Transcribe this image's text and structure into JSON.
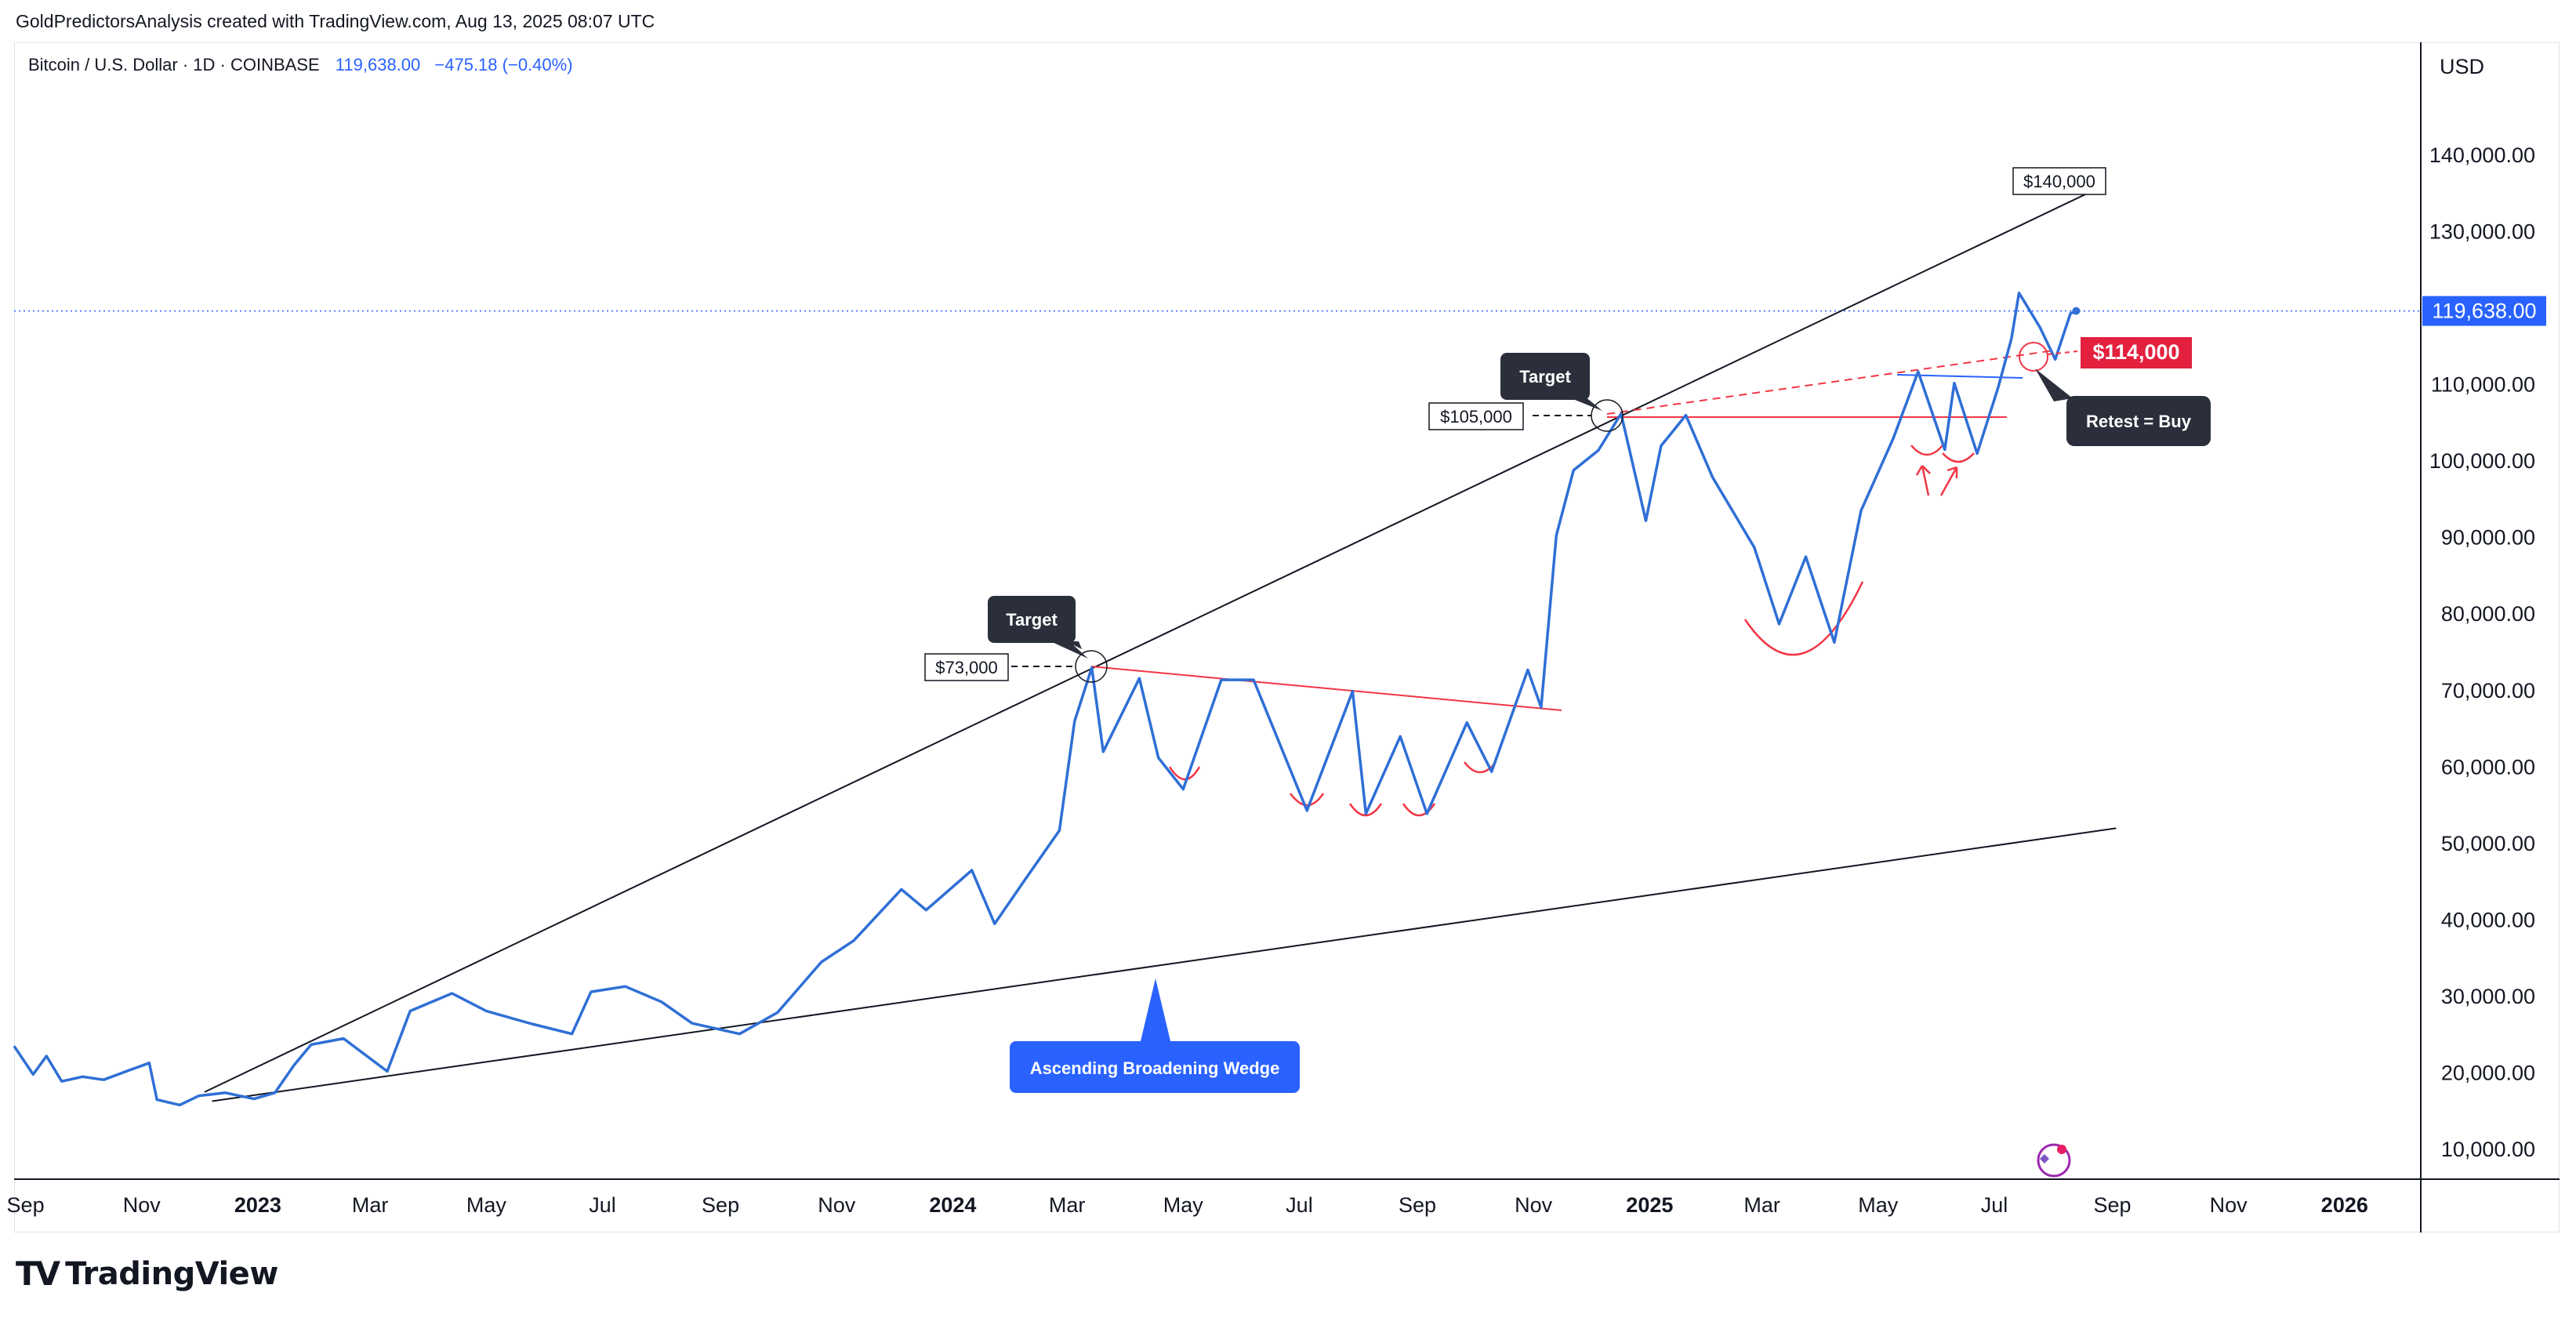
{
  "header": {
    "credit": "GoldPredictorsAnalysis created with TradingView.com, Aug 13, 2025 08:07 UTC",
    "symbol": "Bitcoin / U.S. Dollar · 1D · COINBASE",
    "price": "119,638.00",
    "change": "−475.18 (−0.40%)"
  },
  "brand": {
    "mark": "TV",
    "word": "TradingView"
  },
  "colors": {
    "price_line": "#2f6fd6",
    "accent": "#2962ff",
    "red": "#f23645",
    "dark_label": "#2b2f3b",
    "last_price_bg": "#2962ff",
    "retest_bg": "#e3203e"
  },
  "chart_data": {
    "type": "line",
    "ylabel": "USD",
    "ylim": [
      5000,
      150000
    ],
    "xlim": [
      "2022-08-26",
      "2026-02-10"
    ],
    "y_ticks": [
      10000,
      20000,
      30000,
      40000,
      50000,
      60000,
      70000,
      80000,
      90000,
      100000,
      110000,
      120000,
      130000,
      140000
    ],
    "y_tick_labels": [
      "10,000.00",
      "20,000.00",
      "30,000.00",
      "40,000.00",
      "50,000.00",
      "60,000.00",
      "70,000.00",
      "80,000.00",
      "90,000.00",
      "100,000.00",
      "110,000.00",
      "120,000.00",
      "130,000.00",
      "140,000.00"
    ],
    "x_ticks": [
      {
        "date": "2022-09-01",
        "label": "Sep",
        "bold": false
      },
      {
        "date": "2022-11-01",
        "label": "Nov",
        "bold": false
      },
      {
        "date": "2023-01-01",
        "label": "2023",
        "bold": true
      },
      {
        "date": "2023-03-01",
        "label": "Mar",
        "bold": false
      },
      {
        "date": "2023-05-01",
        "label": "May",
        "bold": false
      },
      {
        "date": "2023-07-01",
        "label": "Jul",
        "bold": false
      },
      {
        "date": "2023-09-01",
        "label": "Sep",
        "bold": false
      },
      {
        "date": "2023-11-01",
        "label": "Nov",
        "bold": false
      },
      {
        "date": "2024-01-01",
        "label": "2024",
        "bold": true
      },
      {
        "date": "2024-03-01",
        "label": "Mar",
        "bold": false
      },
      {
        "date": "2024-05-01",
        "label": "May",
        "bold": false
      },
      {
        "date": "2024-07-01",
        "label": "Jul",
        "bold": false
      },
      {
        "date": "2024-09-01",
        "label": "Sep",
        "bold": false
      },
      {
        "date": "2024-11-01",
        "label": "Nov",
        "bold": false
      },
      {
        "date": "2025-01-01",
        "label": "2025",
        "bold": true
      },
      {
        "date": "2025-03-01",
        "label": "Mar",
        "bold": false
      },
      {
        "date": "2025-05-01",
        "label": "May",
        "bold": false
      },
      {
        "date": "2025-07-01",
        "label": "Jul",
        "bold": false
      },
      {
        "date": "2025-09-01",
        "label": "Sep",
        "bold": false
      },
      {
        "date": "2025-11-01",
        "label": "Nov",
        "bold": false
      },
      {
        "date": "2026-01-01",
        "label": "2026",
        "bold": true
      }
    ],
    "series": [
      {
        "points": [
          [
            "2022-08-26",
            23500
          ],
          [
            "2022-09-05",
            19800
          ],
          [
            "2022-09-12",
            22200
          ],
          [
            "2022-09-20",
            18900
          ],
          [
            "2022-10-01",
            19500
          ],
          [
            "2022-10-12",
            19100
          ],
          [
            "2022-10-25",
            20300
          ],
          [
            "2022-11-05",
            21300
          ],
          [
            "2022-11-09",
            16500
          ],
          [
            "2022-11-21",
            15800
          ],
          [
            "2022-12-01",
            17000
          ],
          [
            "2022-12-15",
            17400
          ],
          [
            "2022-12-30",
            16600
          ],
          [
            "2023-01-10",
            17400
          ],
          [
            "2023-01-20",
            21000
          ],
          [
            "2023-01-29",
            23700
          ],
          [
            "2023-02-15",
            24500
          ],
          [
            "2023-03-10",
            20200
          ],
          [
            "2023-03-22",
            28100
          ],
          [
            "2023-04-13",
            30400
          ],
          [
            "2023-05-01",
            28100
          ],
          [
            "2023-05-25",
            26400
          ],
          [
            "2023-06-15",
            25100
          ],
          [
            "2023-06-25",
            30600
          ],
          [
            "2023-07-13",
            31300
          ],
          [
            "2023-08-01",
            29300
          ],
          [
            "2023-08-17",
            26500
          ],
          [
            "2023-09-11",
            25100
          ],
          [
            "2023-10-01",
            27900
          ],
          [
            "2023-10-24",
            34500
          ],
          [
            "2023-11-10",
            37300
          ],
          [
            "2023-12-05",
            44000
          ],
          [
            "2023-12-18",
            41300
          ],
          [
            "2024-01-11",
            46500
          ],
          [
            "2024-01-23",
            39500
          ],
          [
            "2024-02-08",
            45300
          ],
          [
            "2024-02-26",
            51700
          ],
          [
            "2024-03-05",
            66000
          ],
          [
            "2024-03-14",
            73000
          ],
          [
            "2024-03-20",
            62000
          ],
          [
            "2024-04-08",
            71600
          ],
          [
            "2024-04-18",
            61200
          ],
          [
            "2024-05-01",
            57100
          ],
          [
            "2024-05-21",
            71400
          ],
          [
            "2024-06-07",
            71400
          ],
          [
            "2024-07-05",
            54300
          ],
          [
            "2024-07-29",
            69900
          ],
          [
            "2024-08-05",
            53900
          ],
          [
            "2024-08-23",
            64000
          ],
          [
            "2024-09-06",
            53900
          ],
          [
            "2024-09-27",
            65800
          ],
          [
            "2024-10-10",
            59400
          ],
          [
            "2024-10-29",
            72700
          ],
          [
            "2024-11-05",
            67800
          ],
          [
            "2024-11-13",
            90300
          ],
          [
            "2024-11-22",
            98800
          ],
          [
            "2024-12-05",
            101400
          ],
          [
            "2024-12-17",
            106200
          ],
          [
            "2024-12-30",
            92200
          ],
          [
            "2025-01-07",
            102000
          ],
          [
            "2025-01-20",
            106000
          ],
          [
            "2025-02-03",
            97900
          ],
          [
            "2025-02-25",
            88700
          ],
          [
            "2025-03-10",
            78700
          ],
          [
            "2025-03-24",
            87500
          ],
          [
            "2025-04-08",
            76300
          ],
          [
            "2025-04-22",
            93500
          ],
          [
            "2025-05-09",
            103000
          ],
          [
            "2025-05-22",
            111700
          ],
          [
            "2025-06-05",
            101500
          ],
          [
            "2025-06-10",
            110200
          ],
          [
            "2025-06-22",
            101000
          ],
          [
            "2025-07-03",
            109600
          ],
          [
            "2025-07-10",
            116000
          ],
          [
            "2025-07-14",
            122000
          ],
          [
            "2025-07-25",
            117500
          ],
          [
            "2025-08-02",
            113300
          ],
          [
            "2025-08-10",
            119300
          ],
          [
            "2025-08-13",
            119638
          ]
        ]
      }
    ],
    "annotations": {
      "price_boxes": [
        {
          "label": "$140,000",
          "value": 140000
        },
        {
          "label": "$105,000",
          "value": 105000
        },
        {
          "label": "$73,000",
          "value": 73000
        }
      ],
      "targets": [
        "Target",
        "Target"
      ],
      "retest_price": "$114,000",
      "retest_label": "Retest = Buy",
      "pattern_label": "Ascending Broadening Wedge",
      "last_price": "119,638.00"
    }
  }
}
